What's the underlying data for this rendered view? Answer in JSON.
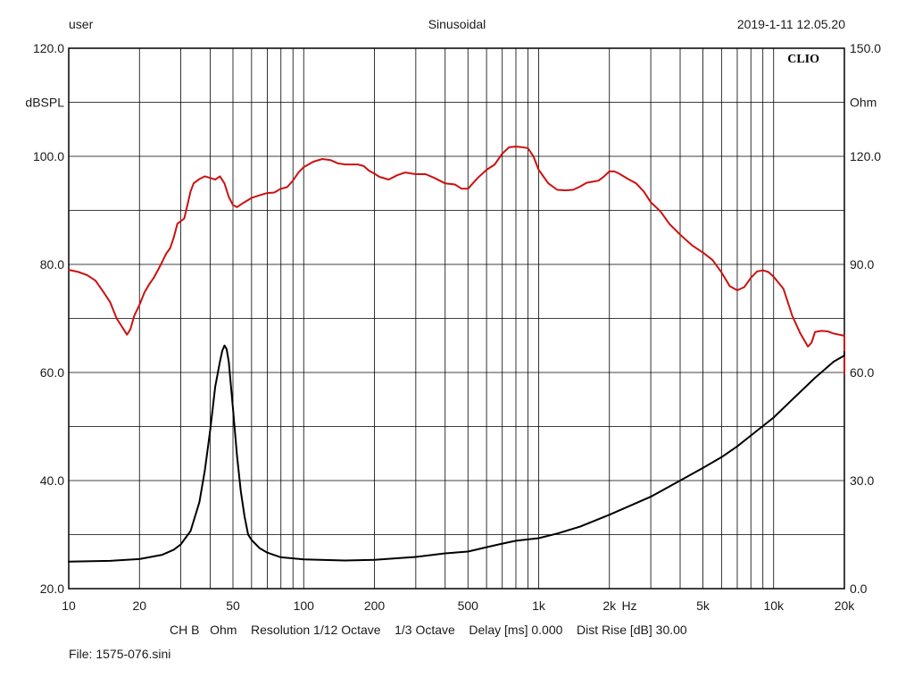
{
  "header": {
    "left": "user",
    "center": "Sinusoidal",
    "right": "2019-1-11 12.05.20"
  },
  "brand": "CLIO",
  "footer": {
    "settings": "CH B   Ohm    Resolution 1/12 Octave    1/3 Octave    Delay [ms] 0.000    Dist Rise [dB] 30.00",
    "file": "File: 1575-076.sini"
  },
  "chart_data": {
    "type": "line",
    "x_scale": "log",
    "xlim": [
      10,
      20000
    ],
    "x_ticks": [
      10,
      20,
      50,
      100,
      200,
      500,
      1000,
      2000,
      5000,
      10000,
      20000
    ],
    "x_tick_labels": [
      "10",
      "20",
      "50",
      "100",
      "200",
      "500",
      "1k",
      "2k",
      "5k",
      "10k",
      "20k"
    ],
    "x_unit_label": "Hz",
    "y_left": {
      "label": "dBSPL",
      "lim": [
        20,
        120
      ],
      "ticks": [
        20,
        40,
        60,
        80,
        100,
        120
      ],
      "tick_labels": [
        "20.0",
        "40.0",
        "60.0",
        "80.0",
        "100.0",
        "120.0"
      ]
    },
    "y_right": {
      "label": "Ohm",
      "lim": [
        0,
        150
      ],
      "ticks": [
        0,
        30,
        60,
        90,
        120,
        150
      ],
      "tick_labels": [
        "0.0",
        "30.0",
        "60.0",
        "90.0",
        "120.0",
        "150.0"
      ]
    },
    "grid": true,
    "series": [
      {
        "axis": "left",
        "color": "#cc1111",
        "points": [
          [
            10,
            79
          ],
          [
            11,
            78.6
          ],
          [
            12,
            78
          ],
          [
            13,
            77
          ],
          [
            14,
            75
          ],
          [
            15,
            73
          ],
          [
            16,
            70
          ],
          [
            17,
            68.2
          ],
          [
            17.7,
            67
          ],
          [
            18.3,
            68
          ],
          [
            19,
            70.5
          ],
          [
            20,
            72.5
          ],
          [
            21,
            74.8
          ],
          [
            22,
            76.3
          ],
          [
            23,
            77.5
          ],
          [
            24,
            79
          ],
          [
            25,
            80.5
          ],
          [
            26,
            82
          ],
          [
            27,
            83
          ],
          [
            28,
            85
          ],
          [
            29,
            87.5
          ],
          [
            30,
            88
          ],
          [
            31,
            88.5
          ],
          [
            32,
            91
          ],
          [
            33,
            93.5
          ],
          [
            34,
            95
          ],
          [
            36,
            95.8
          ],
          [
            38,
            96.3
          ],
          [
            40,
            96
          ],
          [
            42,
            95.7
          ],
          [
            44,
            96.3
          ],
          [
            46,
            95
          ],
          [
            48,
            92.5
          ],
          [
            50,
            91
          ],
          [
            52,
            90.6
          ],
          [
            55,
            91.3
          ],
          [
            60,
            92.3
          ],
          [
            65,
            92.8
          ],
          [
            70,
            93.2
          ],
          [
            75,
            93.3
          ],
          [
            80,
            94
          ],
          [
            85,
            94.3
          ],
          [
            90,
            95.5
          ],
          [
            95,
            97
          ],
          [
            100,
            98
          ],
          [
            110,
            99
          ],
          [
            120,
            99.5
          ],
          [
            130,
            99.3
          ],
          [
            140,
            98.7
          ],
          [
            150,
            98.5
          ],
          [
            160,
            98.5
          ],
          [
            170,
            98.5
          ],
          [
            180,
            98.2
          ],
          [
            190,
            97.3
          ],
          [
            200,
            96.8
          ],
          [
            210,
            96.2
          ],
          [
            230,
            95.7
          ],
          [
            250,
            96.5
          ],
          [
            270,
            97
          ],
          [
            300,
            96.7
          ],
          [
            330,
            96.7
          ],
          [
            360,
            96
          ],
          [
            400,
            95
          ],
          [
            440,
            94.8
          ],
          [
            470,
            94
          ],
          [
            500,
            94
          ],
          [
            550,
            96
          ],
          [
            600,
            97.5
          ],
          [
            650,
            98.5
          ],
          [
            700,
            100.5
          ],
          [
            750,
            101.7
          ],
          [
            800,
            101.8
          ],
          [
            850,
            101.7
          ],
          [
            900,
            101.5
          ],
          [
            950,
            100
          ],
          [
            1000,
            97.5
          ],
          [
            1050,
            96.2
          ],
          [
            1100,
            95
          ],
          [
            1200,
            93.8
          ],
          [
            1300,
            93.7
          ],
          [
            1400,
            93.8
          ],
          [
            1500,
            94.4
          ],
          [
            1600,
            95.1
          ],
          [
            1700,
            95.3
          ],
          [
            1800,
            95.5
          ],
          [
            1900,
            96.3
          ],
          [
            2000,
            97.2
          ],
          [
            2100,
            97.2
          ],
          [
            2200,
            96.8
          ],
          [
            2400,
            95.8
          ],
          [
            2600,
            95
          ],
          [
            2800,
            93.5
          ],
          [
            3000,
            91.5
          ],
          [
            3300,
            89.8
          ],
          [
            3600,
            87.5
          ],
          [
            4000,
            85.5
          ],
          [
            4500,
            83.5
          ],
          [
            5000,
            82.2
          ],
          [
            5500,
            80.8
          ],
          [
            6000,
            78.5
          ],
          [
            6500,
            76
          ],
          [
            7000,
            75.2
          ],
          [
            7500,
            75.8
          ],
          [
            8000,
            77.5
          ],
          [
            8500,
            78.7
          ],
          [
            9000,
            78.9
          ],
          [
            9500,
            78.6
          ],
          [
            10000,
            77.7
          ],
          [
            11000,
            75.5
          ],
          [
            12000,
            70.5
          ],
          [
            13000,
            67.2
          ],
          [
            14000,
            64.8
          ],
          [
            14500,
            65.5
          ],
          [
            15000,
            67.5
          ],
          [
            16000,
            67.7
          ],
          [
            17000,
            67.6
          ],
          [
            18000,
            67.2
          ],
          [
            19000,
            67
          ],
          [
            20000,
            66.8
          ],
          [
            20500,
            62
          ],
          [
            21000,
            59.8
          ],
          [
            21500,
            59.8
          ],
          [
            22000,
            60
          ]
        ]
      },
      {
        "axis": "right",
        "color": "#000000",
        "points": [
          [
            10,
            7.5
          ],
          [
            15,
            7.7
          ],
          [
            20,
            8.2
          ],
          [
            25,
            9.4
          ],
          [
            28,
            10.8
          ],
          [
            30,
            12.3
          ],
          [
            33,
            16
          ],
          [
            36,
            24
          ],
          [
            38,
            33
          ],
          [
            40,
            44
          ],
          [
            42,
            56
          ],
          [
            44,
            63
          ],
          [
            45,
            66
          ],
          [
            46,
            67.5
          ],
          [
            47,
            66.5
          ],
          [
            48,
            63
          ],
          [
            50,
            50
          ],
          [
            52,
            37
          ],
          [
            54,
            27
          ],
          [
            56,
            20
          ],
          [
            58,
            15
          ],
          [
            60,
            13.5
          ],
          [
            65,
            11.2
          ],
          [
            70,
            10
          ],
          [
            80,
            8.7
          ],
          [
            100,
            8.1
          ],
          [
            150,
            7.8
          ],
          [
            200,
            8
          ],
          [
            300,
            8.8
          ],
          [
            400,
            9.8
          ],
          [
            500,
            10.3
          ],
          [
            600,
            11.5
          ],
          [
            700,
            12.5
          ],
          [
            800,
            13.3
          ],
          [
            1000,
            14
          ],
          [
            1200,
            15.3
          ],
          [
            1500,
            17.2
          ],
          [
            2000,
            20.5
          ],
          [
            3000,
            25.5
          ],
          [
            4000,
            30
          ],
          [
            5000,
            33.5
          ],
          [
            6000,
            36.5
          ],
          [
            7000,
            39.5
          ],
          [
            8000,
            42.5
          ],
          [
            10000,
            47.5
          ],
          [
            12000,
            52.5
          ],
          [
            15000,
            58.5
          ],
          [
            18000,
            63
          ],
          [
            20000,
            64.7
          ],
          [
            22000,
            65.7
          ]
        ]
      }
    ]
  }
}
